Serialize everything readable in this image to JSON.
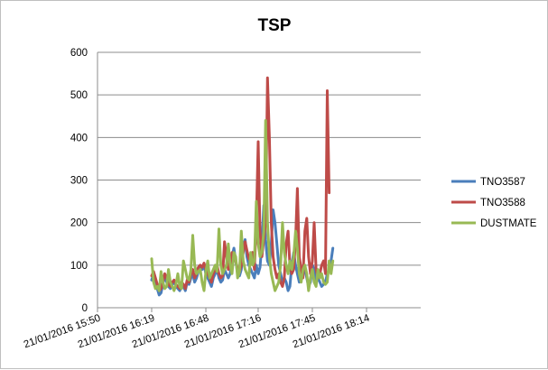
{
  "chart_data": {
    "type": "line",
    "title": "TSP",
    "xlabel": "",
    "ylabel": "",
    "ylim": [
      0,
      600
    ],
    "yticks": [
      0,
      100,
      200,
      300,
      400,
      500,
      600
    ],
    "xlim": [
      "21/01/2016 15:50",
      "21/01/2016 18:43"
    ],
    "xticks": [
      "21/01/2016 15:50",
      "21/01/2016 16:19",
      "21/01/2016 16:48",
      "21/01/2016 17:16",
      "21/01/2016 17:45",
      "21/01/2016 18:14"
    ],
    "x_start_minutes": 0,
    "x_step_minutes": 1,
    "grid": "horizontal",
    "legend_position": "right",
    "series": [
      {
        "name": "TNO3587",
        "color": "#4a7ebb",
        "start_time": "21/01/2016 16:19",
        "interval_minutes": 1,
        "values": [
          65,
          80,
          60,
          45,
          30,
          35,
          55,
          75,
          60,
          50,
          45,
          55,
          60,
          50,
          45,
          40,
          55,
          50,
          40,
          60,
          55,
          70,
          80,
          60,
          70,
          85,
          95,
          90,
          100,
          80,
          70,
          60,
          50,
          70,
          80,
          90,
          70,
          60,
          65,
          90,
          80,
          70,
          80,
          120,
          140,
          110,
          80,
          75,
          90,
          140,
          160,
          120,
          100,
          90,
          80,
          70,
          100,
          80,
          95,
          150,
          240,
          160,
          110,
          100,
          150,
          230,
          200,
          150,
          100,
          80,
          60,
          70,
          60,
          40,
          50,
          100,
          130,
          100,
          80,
          60,
          70,
          80,
          90,
          70,
          50,
          60,
          100,
          90,
          60,
          70,
          60,
          50,
          55,
          60,
          80,
          90,
          110,
          140
        ]
      },
      {
        "name": "TNO3588",
        "color": "#be4b48",
        "start_time": "21/01/2016 16:19",
        "interval_minutes": 1,
        "values": [
          75,
          85,
          70,
          55,
          40,
          45,
          60,
          80,
          70,
          55,
          50,
          60,
          65,
          55,
          50,
          45,
          60,
          55,
          45,
          65,
          60,
          80,
          90,
          70,
          80,
          95,
          100,
          95,
          105,
          90,
          80,
          70,
          60,
          80,
          90,
          100,
          80,
          70,
          75,
          155,
          120,
          90,
          100,
          130,
          125,
          110,
          90,
          85,
          100,
          130,
          155,
          135,
          115,
          110,
          130,
          90,
          200,
          390,
          180,
          120,
          160,
          200,
          540,
          400,
          200,
          120,
          90,
          70,
          80,
          60,
          50,
          70,
          150,
          180,
          100,
          80,
          90,
          160,
          280,
          120,
          90,
          70,
          180,
          210,
          120,
          80,
          110,
          200,
          90,
          70,
          80,
          100,
          110,
          80,
          510,
          270
        ]
      },
      {
        "name": "DUSTMATE",
        "color": "#98b954",
        "start_time": "21/01/2016 16:19",
        "interval_minutes": 1,
        "values": [
          115,
          60,
          45,
          50,
          40,
          85,
          60,
          45,
          50,
          90,
          60,
          50,
          40,
          55,
          80,
          50,
          45,
          110,
          90,
          70,
          65,
          90,
          170,
          100,
          80,
          85,
          90,
          60,
          40,
          85,
          110,
          70,
          80,
          90,
          100,
          85,
          185,
          100,
          80,
          90,
          100,
          150,
          100,
          80,
          130,
          120,
          70,
          85,
          180,
          110,
          90,
          80,
          70,
          130,
          100,
          110,
          250,
          150,
          120,
          130,
          180,
          440,
          200,
          120,
          80,
          60,
          40,
          50,
          60,
          100,
          200,
          130,
          100,
          80,
          110,
          90,
          120,
          180,
          140,
          80,
          60,
          90,
          100,
          80,
          40,
          70,
          90,
          60,
          50,
          90,
          70,
          80,
          60,
          55,
          60,
          110,
          80,
          110
        ]
      }
    ]
  }
}
